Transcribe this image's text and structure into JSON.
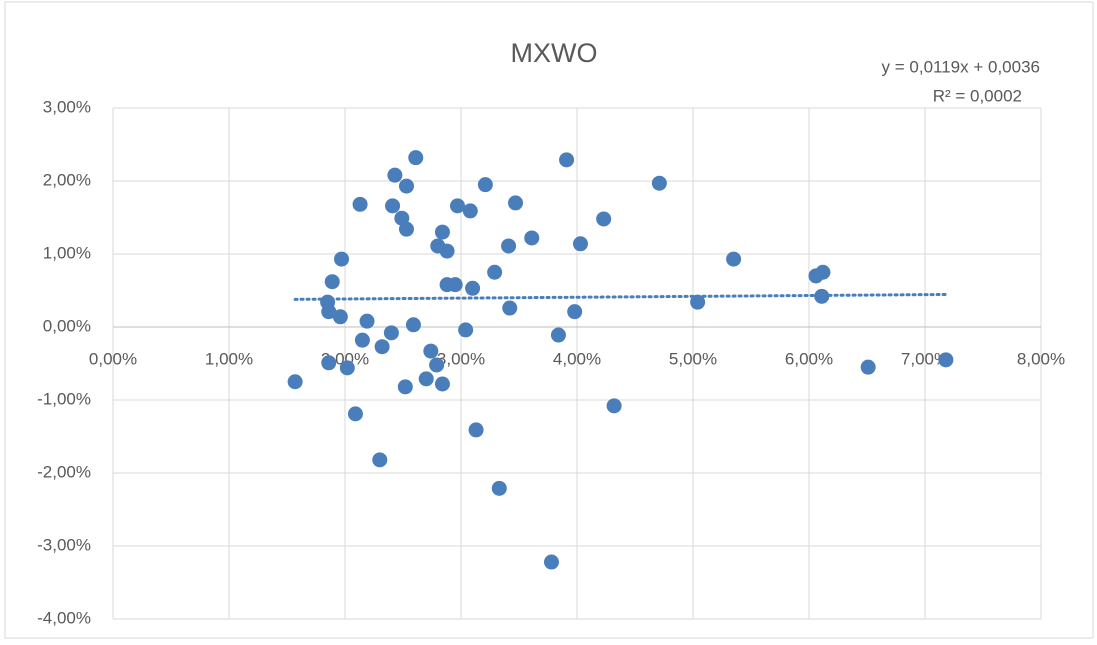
{
  "chart_data": {
    "type": "scatter",
    "title": "MXWO",
    "color": "#4a7ebb",
    "grid": true,
    "x": [
      0.0157,
      0.0185,
      0.0186,
      0.0189,
      0.0186,
      0.0196,
      0.0197,
      0.0202,
      0.0209,
      0.0213,
      0.0215,
      0.0219,
      0.023,
      0.0232,
      0.024,
      0.0241,
      0.0243,
      0.0249,
      0.0252,
      0.0253,
      0.0253,
      0.0259,
      0.0261,
      0.027,
      0.0274,
      0.0279,
      0.028,
      0.0284,
      0.0284,
      0.0288,
      0.0288,
      0.0295,
      0.0297,
      0.0304,
      0.0308,
      0.031,
      0.0313,
      0.0321,
      0.0329,
      0.0333,
      0.0341,
      0.0342,
      0.0347,
      0.0361,
      0.0378,
      0.0384,
      0.0391,
      0.0398,
      0.0403,
      0.0423,
      0.0432,
      0.0471,
      0.0504,
      0.0535,
      0.0606,
      0.0612,
      0.0611,
      0.0651,
      0.0718
    ],
    "values": [
      -0.0075,
      0.0034,
      0.0021,
      0.0062,
      -0.0049,
      0.0014,
      0.0093,
      -0.0056,
      -0.0119,
      0.0168,
      -0.0018,
      0.0008,
      -0.0182,
      -0.0027,
      -0.0008,
      0.0166,
      0.0208,
      0.0149,
      -0.0082,
      0.0193,
      0.0134,
      0.0003,
      0.0232,
      -0.0071,
      -0.0033,
      -0.0052,
      0.0111,
      0.013,
      -0.0078,
      0.0058,
      0.0104,
      0.0058,
      0.0166,
      -0.0004,
      0.0159,
      0.0053,
      -0.0141,
      0.0195,
      0.0075,
      -0.0221,
      0.0111,
      0.0026,
      0.017,
      0.0122,
      -0.0322,
      -0.0011,
      0.0229,
      0.0021,
      0.0114,
      0.0148,
      -0.0108,
      0.0197,
      0.0034,
      0.0093,
      0.007,
      0.0075,
      0.0042,
      -0.0055,
      -0.0045
    ],
    "xlim": [
      0,
      0.08
    ],
    "ylim": [
      -0.04,
      0.03
    ],
    "xticks": [
      {
        "value": 0,
        "label": "0,00%"
      },
      {
        "value": 0.01,
        "label": "1,00%"
      },
      {
        "value": 0.02,
        "label": "2,00%"
      },
      {
        "value": 0.03,
        "label": "3,00%"
      },
      {
        "value": 0.04,
        "label": "4,00%"
      },
      {
        "value": 0.05,
        "label": "5,00%"
      },
      {
        "value": 0.06,
        "label": "6,00%"
      },
      {
        "value": 0.07,
        "label": "7,00%"
      },
      {
        "value": 0.08,
        "label": "8,00%"
      }
    ],
    "yticks": [
      {
        "value": -0.04,
        "label": "-4,00%"
      },
      {
        "value": -0.03,
        "label": "-3,00%"
      },
      {
        "value": -0.02,
        "label": "-2,00%"
      },
      {
        "value": -0.01,
        "label": "-1,00%"
      },
      {
        "value": 0,
        "label": "0,00%"
      },
      {
        "value": 0.01,
        "label": "1,00%"
      },
      {
        "value": 0.02,
        "label": "2,00%"
      },
      {
        "value": 0.03,
        "label": "3,00%"
      }
    ],
    "trendline": {
      "slope": 0.0119,
      "intercept": 0.0036,
      "equation": "y = 0,0119x + 0,0036",
      "r2": "R² = 0,0002"
    }
  }
}
